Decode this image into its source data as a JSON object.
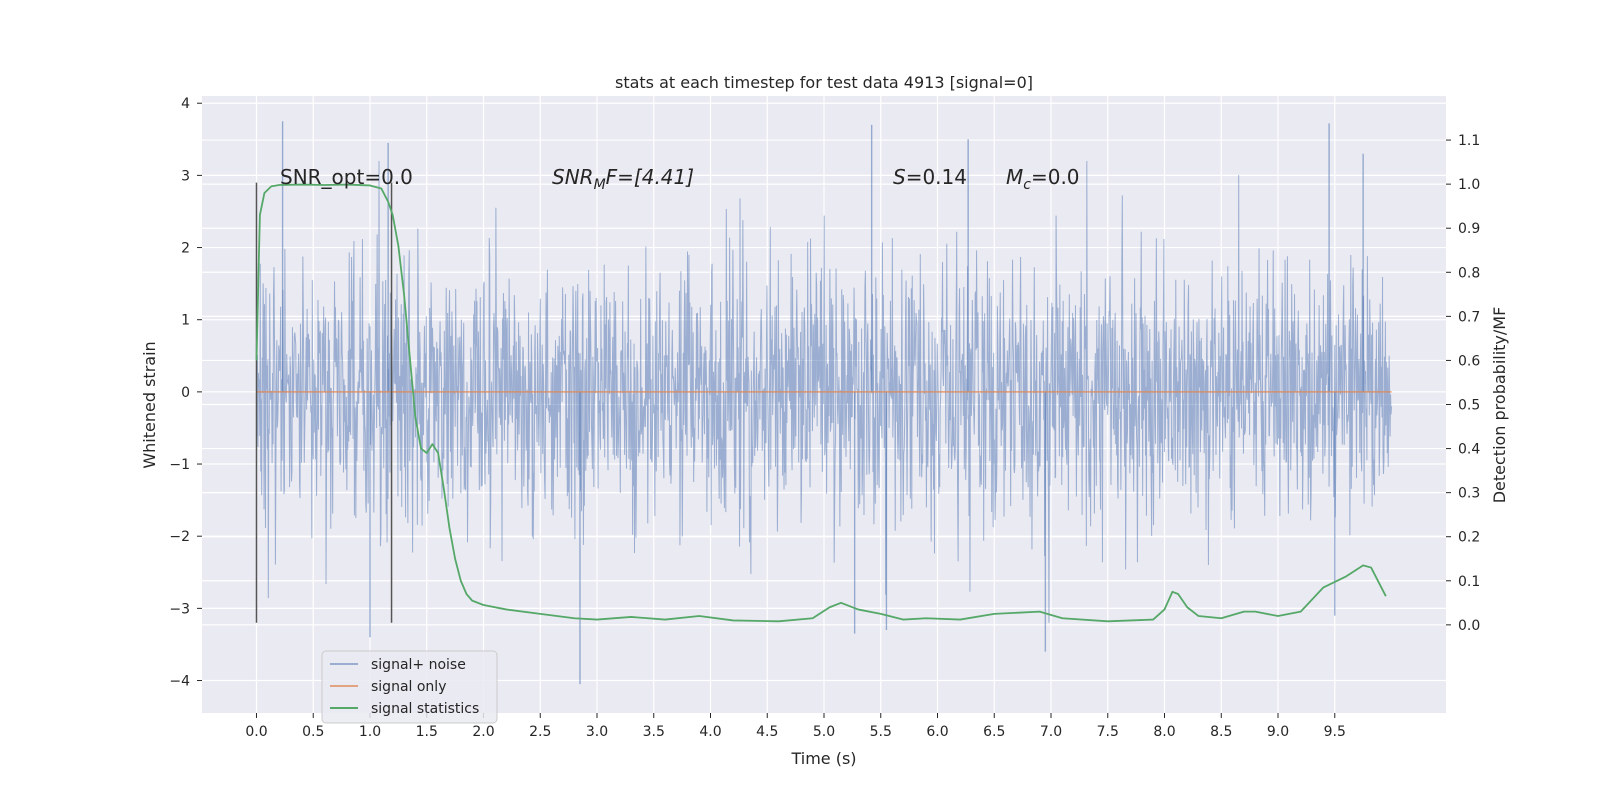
{
  "chart_data": {
    "type": "line",
    "title": "stats at each timestep for test data 4913 [signal=0]",
    "xlabel": "Time (s)",
    "ylabel_left": "Whitened strain",
    "ylabel_right": "Detection probability/MF",
    "xlim": [
      -0.48,
      10.48
    ],
    "ylim_left": [
      -4.45,
      4.1
    ],
    "ylim_right": [
      -0.2,
      1.2
    ],
    "x_ticks": [
      "0.0",
      "0.5",
      "1.0",
      "1.5",
      "2.0",
      "2.5",
      "3.0",
      "3.5",
      "4.0",
      "4.5",
      "5.0",
      "5.5",
      "6.0",
      "6.5",
      "7.0",
      "7.5",
      "8.0",
      "8.5",
      "9.0",
      "9.5"
    ],
    "y_ticks_left": [
      "4",
      "3",
      "2",
      "1",
      "0",
      "−1",
      "−2",
      "−3",
      "−4"
    ],
    "y_ticks_right": [
      "1.1",
      "1.0",
      "0.9",
      "0.8",
      "0.7",
      "0.6",
      "0.5",
      "0.4",
      "0.3",
      "0.2",
      "0.1",
      "0.0"
    ],
    "grid": true,
    "legend_position": "lower-left",
    "annotations": [
      {
        "label": "SNR_opt=0.0",
        "math": false
      },
      {
        "base": "SNR",
        "sub": "M",
        "rest": "F=[4.41]",
        "math": true
      },
      {
        "base": "S",
        "rest": "=0.14",
        "math": true
      },
      {
        "base": "M",
        "sub": "c",
        "rest": "=0.0",
        "math": true
      }
    ],
    "vertical_markers": [
      {
        "x": 0.0,
        "ymin": -3.2,
        "ymax": 2.9
      },
      {
        "x": 1.19,
        "ymin": -3.2,
        "ymax": 2.9
      }
    ],
    "series": [
      {
        "name": "signal+ noise",
        "color": "#4c72b0",
        "axis": "left",
        "x_range": [
          0,
          10
        ],
        "envelope_typical": [
          -1.7,
          1.7
        ],
        "extremes": [
          {
            "x": 0.23,
            "y": 3.75
          },
          {
            "x": 1.16,
            "y": 3.45
          },
          {
            "x": 5.42,
            "y": 3.7
          },
          {
            "x": 6.27,
            "y": 3.5
          },
          {
            "x": 9.45,
            "y": 3.72
          },
          {
            "x": 9.75,
            "y": 3.3
          },
          {
            "x": 2.85,
            "y": -4.05
          },
          {
            "x": 1.0,
            "y": -3.4
          },
          {
            "x": 5.27,
            "y": -3.35
          },
          {
            "x": 6.95,
            "y": -3.6
          },
          {
            "x": 5.55,
            "y": -3.3
          },
          {
            "x": 9.5,
            "y": -3.1
          }
        ]
      },
      {
        "name": "signal only",
        "color": "#dd8452",
        "axis": "left",
        "x": [
          0,
          10
        ],
        "y": [
          0,
          0
        ]
      },
      {
        "name": "signal statistics",
        "color": "#55a868",
        "axis": "right",
        "x": [
          0.0,
          0.03,
          0.07,
          0.13,
          0.2,
          0.4,
          0.6,
          0.8,
          1.0,
          1.1,
          1.16,
          1.2,
          1.25,
          1.3,
          1.35,
          1.4,
          1.45,
          1.5,
          1.55,
          1.6,
          1.65,
          1.7,
          1.75,
          1.8,
          1.85,
          1.9,
          2.0,
          2.2,
          2.5,
          2.8,
          3.0,
          3.3,
          3.6,
          3.9,
          4.2,
          4.6,
          4.9,
          5.05,
          5.15,
          5.3,
          5.5,
          5.7,
          5.9,
          6.2,
          6.5,
          6.9,
          7.1,
          7.5,
          7.9,
          8.0,
          8.07,
          8.12,
          8.2,
          8.3,
          8.5,
          8.7,
          8.8,
          9.0,
          9.2,
          9.4,
          9.6,
          9.75,
          9.82,
          9.95
        ],
        "y": [
          0.6,
          0.93,
          0.98,
          0.995,
          0.998,
          0.999,
          0.998,
          0.999,
          0.997,
          0.99,
          0.96,
          0.93,
          0.86,
          0.75,
          0.61,
          0.47,
          0.4,
          0.39,
          0.41,
          0.39,
          0.31,
          0.22,
          0.15,
          0.1,
          0.07,
          0.055,
          0.045,
          0.035,
          0.025,
          0.015,
          0.012,
          0.018,
          0.012,
          0.02,
          0.01,
          0.008,
          0.015,
          0.04,
          0.05,
          0.035,
          0.025,
          0.012,
          0.015,
          0.012,
          0.025,
          0.03,
          0.015,
          0.008,
          0.012,
          0.035,
          0.075,
          0.07,
          0.04,
          0.02,
          0.015,
          0.03,
          0.03,
          0.02,
          0.03,
          0.085,
          0.11,
          0.135,
          0.13,
          0.065
        ]
      }
    ]
  }
}
